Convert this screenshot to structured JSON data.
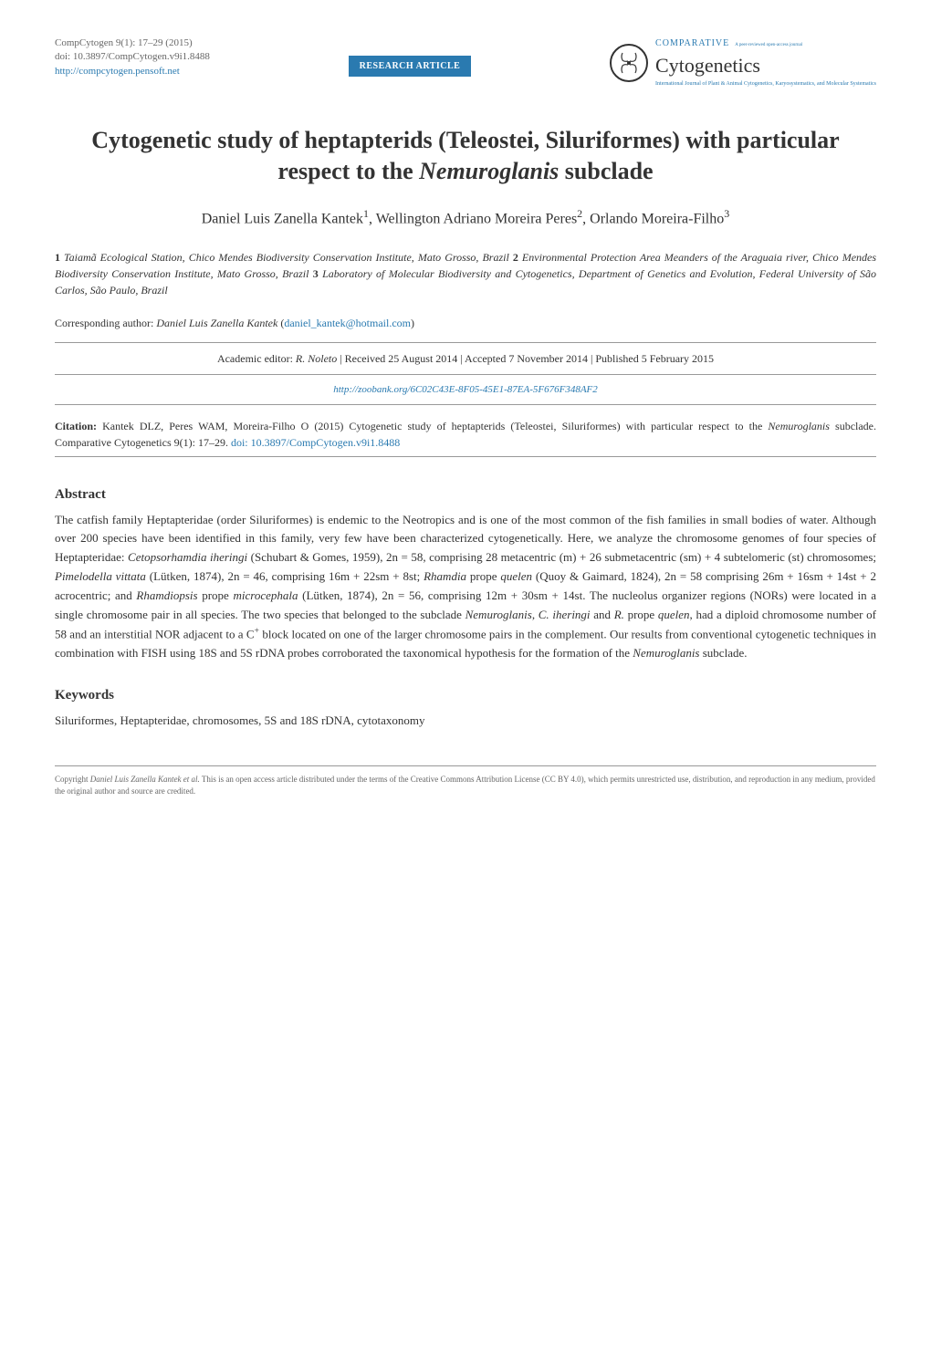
{
  "header": {
    "journal_ref": "CompCytogen 9(1): 17–29 (2015)",
    "doi": "doi: 10.3897/CompCytogen.v9i1.8488",
    "url": "http://compcytogen.pensoft.net",
    "badge": "RESEARCH ARTICLE",
    "journal_top": "COMPARATIVE",
    "journal_peer": "A peer-reviewed open-access journal",
    "journal_main": "Cytogenetics",
    "journal_tagline": "International Journal of Plant & Animal Cytogenetics, Karyosystematics, and Molecular Systematics"
  },
  "title": "Cytogenetic study of heptapterids (Teleostei, Siluriformes) with particular respect to the <i>Nemuroglanis</i> subclade",
  "authors": "Daniel Luis Zanella Kantek<sup>1</sup>, Wellington Adriano Moreira Peres<sup>2</sup>, Orlando Moreira-Filho<sup>3</sup>",
  "affiliations": "<b>1</b> <i>Taiamã Ecological Station, Chico Mendes Biodiversity Conservation Institute, Mato Grosso, Brazil</i> <b>2</b> <i>Environmental Protection Area Meanders of the Araguaia river, Chico Mendes Biodiversity Conservation Institute, Mato Grosso, Brazil</i> <b>3</b> <i>Laboratory of Molecular Biodiversity and Cytogenetics, Department of Genetics and Evolution, Federal University of São Carlos, São Paulo, Brazil</i>",
  "corresponding_label": "Corresponding author:",
  "corresponding_name": "Daniel Luis Zanella Kantek",
  "corresponding_email": "daniel_kantek@hotmail.com",
  "editor_line": "Academic editor: <i>R. Noleto</i>  |  Received 25 August 2014  |  Accepted 7 November 2014  |  Published 5 February 2015",
  "zoobank": "http://zoobank.org/6C02C43E-8F05-45E1-87EA-5F676F348AF2",
  "citation_label": "Citation:",
  "citation_text": "Kantek DLZ, Peres WAM, Moreira-Filho O (2015) Cytogenetic study of heptapterids (Teleostei, Siluriformes) with particular respect to the <i>Nemuroglanis</i> subclade. Comparative Cytogenetics 9(1): 17–29. ",
  "citation_doi": "doi: 10.3897/CompCytogen.v9i1.8488",
  "abstract": {
    "title": "Abstract",
    "text": "The catfish family Heptapteridae (order Siluriformes) is endemic to the Neotropics and is one of the most common of the fish families in small bodies of water. Although over 200 species have been identified in this family, very few have been characterized cytogenetically. Here, we analyze the chromosome genomes of four species of Heptapteridae: <i>Cetopsorhamdia iheringi</i> (Schubart & Gomes, 1959), 2n = 58, comprising 28 metacentric (m) + 26 submetacentric (sm) + 4 subtelomeric (st) chromosomes; <i>Pimelodella vittata</i> (Lütken, 1874), 2n = 46, comprising 16m + 22sm + 8st; <i>Rhamdia</i> prope <i>quelen</i> (Quoy & Gaimard, 1824), 2n = 58 comprising 26m + 16sm + 14st + 2 acrocentric; and <i>Rhamdiopsis</i> prope <i>microcephala</i> (Lütken, 1874), 2n = 56, comprising 12m + 30sm + 14st. The nucleolus organizer regions (NORs) were located in a single chromosome pair in all species. The two species that belonged to the subclade <i>Nemuroglanis</i>, <i>C. iheringi</i> and <i>R.</i> prope <i>quelen</i>, had a diploid chromosome number of 58 and an interstitial NOR adjacent to a C<sup>+</sup> block located on one of the larger chromosome pairs in the complement. Our results from conventional cytogenetic techniques in combination with FISH using 18S and 5S rDNA probes corroborated the taxonomical hypothesis for the formation of the <i>Nemuroglanis</i> subclade."
  },
  "keywords": {
    "title": "Keywords",
    "text": "Siluriformes, Heptapteridae, chromosomes, 5S and 18S rDNA, cytotaxonomy"
  },
  "footer": "Copyright <i>Daniel Luis Zanella Kantek et al.</i> This is an open access article distributed under the terms of the Creative Commons Attribution License (CC BY 4.0), which permits unrestricted use, distribution, and reproduction in any medium, provided the original author and source are credited."
}
